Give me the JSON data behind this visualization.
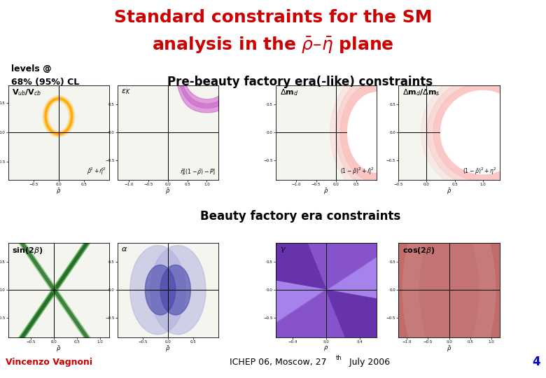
{
  "title_line1": "Standard constraints for the SM",
  "title_line2": "analysis in the $\\bar{\\rho}$–$\\bar{\\eta}$ plane",
  "title_color": "#cc0000",
  "bg_color": "#ffffff",
  "footer_bar_color": "#2222cc",
  "footer_left": "Vincenzo Vagnoni",
  "footer_center": "ICHEP 06, Moscow, 27",
  "footer_right_num": "4",
  "footer_left_color": "#cc0000",
  "footer_center_color": "#000000",
  "footer_right_color": "#0000cc",
  "levels_label_line1": "levels @",
  "levels_label_line2": "68% (95%) CL",
  "section1_label": "Pre-beauty factory era(-like) constraints",
  "section2_label": "Beauty factory era constraints",
  "panel1_label": "V$_{ub}$/V$_{cb}$",
  "panel2_label": "$\\varepsilon_K$",
  "panel3_label": "$\\Delta$m$_d$",
  "panel4_label": "$\\Delta$m$_d$/$\\Delta$m$_s$",
  "panel5_label": "sin(2$\\beta$)",
  "panel6_label": "$\\alpha$",
  "panel7_label": "$\\gamma$",
  "panel8_label": "cos(2$\\beta$)",
  "formula1": "$\\bar{\\rho}^2 + \\bar{\\eta}^2$",
  "formula2": "$\\bar{\\eta}[(1-\\bar{\\rho})-P]$",
  "formula3": "$(1-\\bar{\\rho})^2+\\bar{\\eta}^2$",
  "formula4": "$(1-\\bar{\\rho})^2+\\eta^2$",
  "ellipse_color_outer": "#ffcc44",
  "ellipse_color_inner": "#ff8800",
  "hyperbola_color": "#cc66cc",
  "circle_color": "#ffaaaa",
  "sin2b_green1": "#44aa44",
  "sin2b_green2": "#226622",
  "alpha_light": "#aaaadd",
  "alpha_dark": "#4444aa",
  "gamma_dark": "#6633aa",
  "gamma_medium": "#8855cc",
  "gamma_light": "#aa88ee",
  "cos2b_dark": "#aa3333",
  "cos2b_light": "#cc8888"
}
